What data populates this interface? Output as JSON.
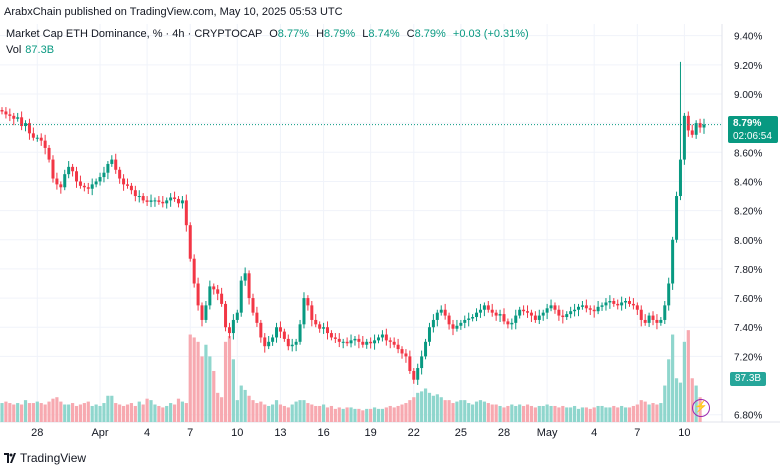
{
  "header": {
    "published_by": "ArabxChain published on TradingView.com, May 10, 2025 05:53 UTC"
  },
  "legend": {
    "symbol": "Market Cap ETH Dominance, %",
    "interval": "4h",
    "exchange": "CRYPTOCAP",
    "o_label": "O",
    "o_value": "8.77%",
    "h_label": "H",
    "h_value": "8.79%",
    "l_label": "L",
    "l_value": "8.74%",
    "c_label": "C",
    "c_value": "8.79%",
    "change": "+0.03 (+0.31%)",
    "vol_label": "Vol",
    "vol_value": "87.3B"
  },
  "price_badge": {
    "price": "8.79%",
    "countdown": "02:06:54"
  },
  "vol_badge": {
    "value": "87.3B"
  },
  "footer": {
    "brand": "TradingView"
  },
  "colors": {
    "up": "#089981",
    "down": "#f23645",
    "vol_up": "#8fd6cd",
    "vol_down": "#f7a9b0",
    "grid": "#f0f3fa",
    "axis_text": "#131722"
  },
  "chart_data": {
    "type": "candlestick",
    "y_axis_labels": [
      "9.40%",
      "9.20%",
      "9.00%",
      "8.80%",
      "8.60%",
      "8.40%",
      "8.20%",
      "8.00%",
      "7.80%",
      "7.60%",
      "7.40%",
      "7.20%",
      "6.80%"
    ],
    "y_axis_values": [
      9.4,
      9.2,
      9.0,
      8.8,
      8.6,
      8.4,
      8.2,
      8.0,
      7.8,
      7.6,
      7.4,
      7.2,
      6.8
    ],
    "ylim": [
      6.75,
      9.48
    ],
    "x_axis_labels": [
      "28",
      "Apr",
      "4",
      "7",
      "10",
      "13",
      "16",
      "19",
      "22",
      "25",
      "28",
      "May",
      "4",
      "7",
      "10"
    ],
    "x_axis_bar_index": [
      9,
      25,
      37,
      48,
      60,
      71,
      82,
      94,
      105,
      117,
      128,
      139,
      151,
      162,
      174
    ],
    "last_price": 8.79,
    "closes": [
      8.88,
      8.86,
      8.85,
      8.83,
      8.84,
      8.78,
      8.8,
      8.73,
      8.7,
      8.7,
      8.68,
      8.63,
      8.55,
      8.42,
      8.38,
      8.36,
      8.45,
      8.5,
      8.47,
      8.4,
      8.37,
      8.36,
      8.35,
      8.38,
      8.4,
      8.43,
      8.46,
      8.52,
      8.55,
      8.48,
      8.42,
      8.38,
      8.37,
      8.34,
      8.3,
      8.3,
      8.27,
      8.26,
      8.27,
      8.27,
      8.26,
      8.25,
      8.27,
      8.29,
      8.28,
      8.25,
      8.27,
      8.1,
      7.87,
      7.7,
      7.55,
      7.45,
      7.55,
      7.68,
      7.66,
      7.63,
      7.56,
      7.4,
      7.36,
      7.45,
      7.5,
      7.72,
      7.77,
      7.6,
      7.5,
      7.43,
      7.33,
      7.27,
      7.3,
      7.33,
      7.4,
      7.37,
      7.32,
      7.27,
      7.28,
      7.3,
      7.42,
      7.6,
      7.55,
      7.45,
      7.42,
      7.39,
      7.4,
      7.36,
      7.33,
      7.32,
      7.3,
      7.3,
      7.29,
      7.31,
      7.32,
      7.3,
      7.28,
      7.3,
      7.29,
      7.31,
      7.33,
      7.35,
      7.31,
      7.3,
      7.28,
      7.25,
      7.22,
      7.2,
      7.1,
      7.04,
      7.12,
      7.2,
      7.3,
      7.4,
      7.45,
      7.5,
      7.52,
      7.48,
      7.42,
      7.39,
      7.41,
      7.43,
      7.45,
      7.46,
      7.47,
      7.5,
      7.52,
      7.55,
      7.52,
      7.5,
      7.48,
      7.49,
      7.44,
      7.42,
      7.43,
      7.48,
      7.52,
      7.51,
      7.5,
      7.48,
      7.45,
      7.48,
      7.5,
      7.53,
      7.55,
      7.52,
      7.48,
      7.47,
      7.49,
      7.51,
      7.52,
      7.54,
      7.55,
      7.53,
      7.52,
      7.51,
      7.54,
      7.55,
      7.57,
      7.58,
      7.56,
      7.55,
      7.57,
      7.58,
      7.56,
      7.55,
      7.52,
      7.45,
      7.43,
      7.48,
      7.45,
      7.43,
      7.45,
      7.55,
      7.7,
      8.0,
      8.3,
      8.55,
      8.85,
      8.75,
      8.72,
      8.8,
      8.77,
      8.79
    ],
    "volumes": [
      6.88,
      6.89,
      6.88,
      6.87,
      6.88,
      6.87,
      6.9,
      6.88,
      6.88,
      6.89,
      6.88,
      6.87,
      6.89,
      6.91,
      6.92,
      6.89,
      6.87,
      6.87,
      6.88,
      6.86,
      6.87,
      6.88,
      6.89,
      6.86,
      6.87,
      6.86,
      6.88,
      6.93,
      6.93,
      6.88,
      6.87,
      6.86,
      6.87,
      6.88,
      6.86,
      6.89,
      6.87,
      6.91,
      6.9,
      6.87,
      6.86,
      6.85,
      6.86,
      6.88,
      6.87,
      6.91,
      6.89,
      6.88,
      7.35,
      7.33,
      7.3,
      7.2,
      7.28,
      7.2,
      7.1,
      6.95,
      6.92,
      7.3,
      7.34,
      7.18,
      6.9,
      7.0,
      6.97,
      6.93,
      6.9,
      6.88,
      6.89,
      6.87,
      6.86,
      6.87,
      6.9,
      6.87,
      6.86,
      6.85,
      6.87,
      6.89,
      6.9,
      6.9,
      6.88,
      6.87,
      6.86,
      6.86,
      6.87,
      6.85,
      6.86,
      6.84,
      6.85,
      6.84,
      6.85,
      6.85,
      6.84,
      6.84,
      6.83,
      6.84,
      6.84,
      6.85,
      6.84,
      6.84,
      6.85,
      6.86,
      6.85,
      6.86,
      6.87,
      6.88,
      6.9,
      6.92,
      6.95,
      6.96,
      6.98,
      6.95,
      6.93,
      6.94,
      6.92,
      6.9,
      6.9,
      6.88,
      6.89,
      6.9,
      6.9,
      6.88,
      6.87,
      6.89,
      6.9,
      6.89,
      6.88,
      6.87,
      6.87,
      6.86,
      6.85,
      6.86,
      6.87,
      6.86,
      6.87,
      6.86,
      6.87,
      6.86,
      6.85,
      6.86,
      6.86,
      6.87,
      6.86,
      6.86,
      6.85,
      6.86,
      6.85,
      6.85,
      6.86,
      6.84,
      6.85,
      6.85,
      6.84,
      6.85,
      6.86,
      6.86,
      6.85,
      6.85,
      6.86,
      6.85,
      6.86,
      6.85,
      6.85,
      6.86,
      6.87,
      6.9,
      6.89,
      6.87,
      6.88,
      6.87,
      6.88,
      7.0,
      7.18,
      7.35,
      7.05,
      7.02,
      7.3,
      7.38,
      7.05,
      7.0,
      6.92
    ],
    "spike_high_index": 173,
    "spike_high_value": 9.22
  }
}
